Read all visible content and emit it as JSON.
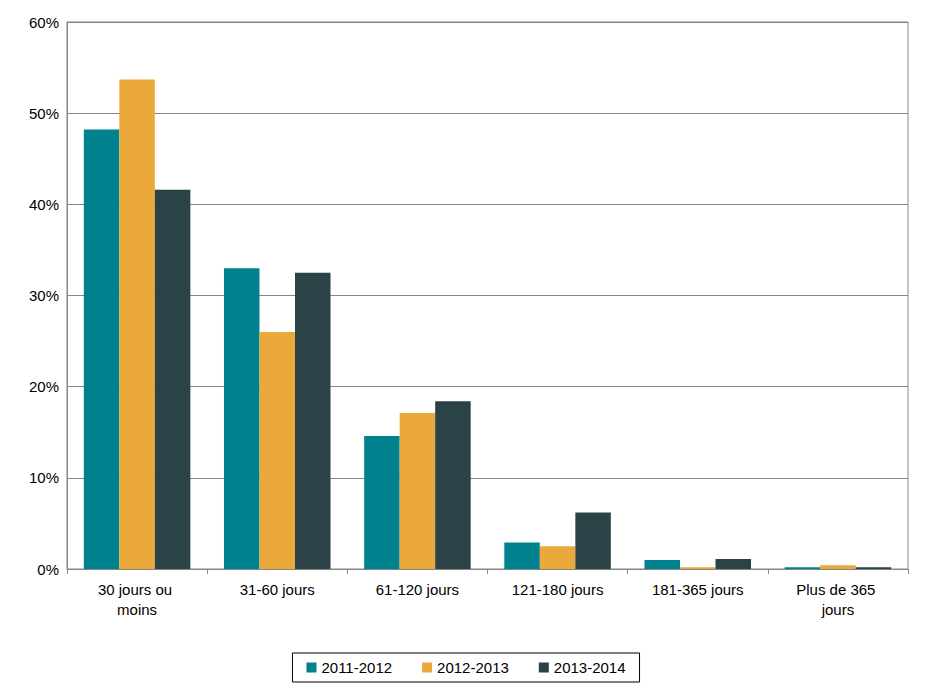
{
  "chart_data": {
    "type": "bar",
    "categories": [
      "30 jours ou moins",
      "31-60 jours",
      "61-120 jours",
      "121-180 jours",
      "181-365 jours",
      "Plus de 365 jours"
    ],
    "series": [
      {
        "name": "2011-2012",
        "color": "#00818e",
        "values": [
          48.2,
          33.0,
          14.6,
          2.9,
          1.0,
          0.2
        ]
      },
      {
        "name": "2012-2013",
        "color": "#eaa93a",
        "values": [
          53.7,
          26.0,
          17.1,
          2.5,
          0.2,
          0.4
        ]
      },
      {
        "name": "2013-2014",
        "color": "#2b4247",
        "values": [
          41.6,
          32.5,
          18.4,
          6.2,
          1.1,
          0.2
        ]
      }
    ],
    "ylim": [
      0,
      60
    ],
    "yticks": [
      {
        "value": 0,
        "label": "0%"
      },
      {
        "value": 10,
        "label": "10%"
      },
      {
        "value": 20,
        "label": "20%"
      },
      {
        "value": 30,
        "label": "30%"
      },
      {
        "value": 40,
        "label": "40%"
      },
      {
        "value": 50,
        "label": "50%"
      },
      {
        "value": 60,
        "label": "60%"
      }
    ],
    "grid": true,
    "legend": "bottom"
  }
}
